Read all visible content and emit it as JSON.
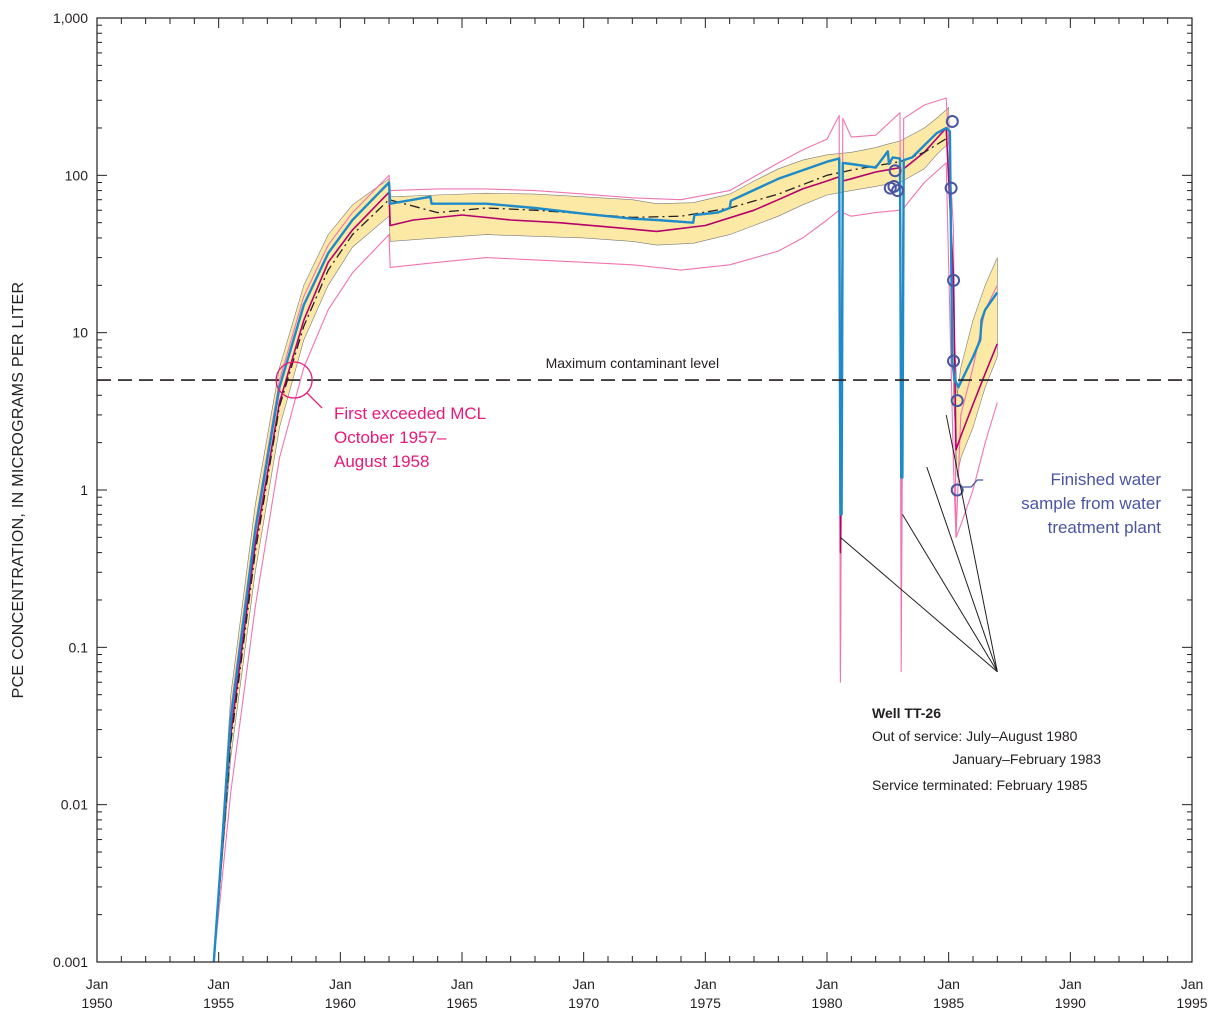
{
  "chart_data": {
    "type": "line",
    "yscale": "log",
    "ylim": [
      0.001,
      1000
    ],
    "xlim": [
      1950,
      1995
    ],
    "ylabel": "PCE  CONCENTRATION, IN MICROGRAMS PER LITER",
    "y_ticks": [
      {
        "value": 1000,
        "label": "1,000"
      },
      {
        "value": 100,
        "label": "100"
      },
      {
        "value": 10,
        "label": "10"
      },
      {
        "value": 1,
        "label": "1"
      },
      {
        "value": 0.1,
        "label": "0.1"
      },
      {
        "value": 0.01,
        "label": "0.01"
      },
      {
        "value": 0.001,
        "label": "0.001"
      }
    ],
    "x_ticks": [
      {
        "value": 1950,
        "month": "Jan",
        "year": "1950"
      },
      {
        "value": 1955,
        "month": "Jan",
        "year": "1955"
      },
      {
        "value": 1960,
        "month": "Jan",
        "year": "1960"
      },
      {
        "value": 1965,
        "month": "Jan",
        "year": "1965"
      },
      {
        "value": 1970,
        "month": "Jan",
        "year": "1970"
      },
      {
        "value": 1975,
        "month": "Jan",
        "year": "1975"
      },
      {
        "value": 1980,
        "month": "Jan",
        "year": "1980"
      },
      {
        "value": 1985,
        "month": "Jan",
        "year": "1985"
      },
      {
        "value": 1990,
        "month": "Jan",
        "year": "1990"
      },
      {
        "value": 1995,
        "month": "Jan",
        "year": "1995"
      }
    ],
    "mcl": {
      "value": 5,
      "label": "Maximum contaminant level"
    },
    "colors": {
      "band": "#fde9a6",
      "band_edge": "#7a7a7a",
      "blue": "#1f8ac8",
      "magenta": "#b5006b",
      "pink": "#f074b0",
      "dashdot": "#231f20",
      "annotation_pink": "#e8197a",
      "annotation_blue": "#4a55a2",
      "axis": "#231f20"
    },
    "series": [
      {
        "style": "band",
        "x": [
          1954.8,
          1955.5,
          1956.5,
          1957.5,
          1958.5,
          1959.5,
          1960.5,
          1962.0,
          1962.05,
          1964.0,
          1966.0,
          1968.0,
          1970.0,
          1972.0,
          1973.0,
          1974.5,
          1976.0,
          1977.0,
          1978.0,
          1979.0,
          1980.0,
          1981.0,
          1982.0,
          1982.5,
          1983.0,
          1984.0,
          1984.5,
          1985.0,
          1985.2,
          1985.35,
          1985.5,
          1986.0,
          1986.5,
          1987.0
        ],
        "lower": [
          0.001,
          0.02,
          0.3,
          2.5,
          9,
          20,
          35,
          55,
          38,
          40,
          42,
          41,
          40,
          38,
          36,
          37,
          42,
          48,
          55,
          65,
          75,
          80,
          85,
          88,
          90,
          110,
          135,
          160,
          4,
          1.2,
          1.6,
          2.5,
          4.5,
          7
        ],
        "upper": [
          0.001,
          0.05,
          0.8,
          6,
          20,
          42,
          65,
          95,
          73,
          75,
          77,
          76,
          73,
          70,
          66,
          67,
          76,
          92,
          110,
          125,
          135,
          140,
          150,
          158,
          165,
          200,
          230,
          270,
          13,
          4,
          6,
          12,
          20,
          30
        ]
      },
      {
        "style": "blue",
        "x": [
          1954.8,
          1955.5,
          1956.5,
          1957.5,
          1958.5,
          1959.5,
          1960.5,
          1962.0,
          1962.05,
          1963.0,
          1963.7,
          1963.75,
          1966.0,
          1968.0,
          1970.0,
          1972.0,
          1973.0,
          1974.5,
          1974.55,
          1975.5,
          1976.0,
          1976.05,
          1978.0,
          1980.0,
          1980.5,
          1980.55,
          1980.6,
          1980.65,
          1981.0,
          1982.0,
          1982.5,
          1982.55,
          1982.7,
          1983.0,
          1983.05,
          1983.1,
          1983.15,
          1983.5,
          1984.0,
          1984.5,
          1984.9,
          1985.05,
          1985.15,
          1985.25,
          1985.4,
          1986.0,
          1986.3,
          1986.35,
          1986.5,
          1987.0
        ],
        "y": [
          0.001,
          0.035,
          0.55,
          4.5,
          15,
          32,
          52,
          90,
          66,
          70,
          73,
          66,
          66,
          62,
          57,
          53,
          52,
          50,
          56,
          58,
          62,
          69,
          95,
          122,
          128,
          0.7,
          0.7,
          120,
          118,
          112,
          142,
          118,
          130,
          128,
          1.2,
          1.2,
          125,
          130,
          155,
          185,
          200,
          190,
          6.5,
          5,
          4.5,
          7,
          9,
          12,
          14,
          18
        ]
      },
      {
        "style": "magenta",
        "x": [
          1954.8,
          1955.5,
          1956.5,
          1957.5,
          1958.5,
          1959.5,
          1960.5,
          1962.0,
          1962.05,
          1963.0,
          1965.0,
          1967.0,
          1969.0,
          1971.0,
          1973.0,
          1975.0,
          1977.0,
          1978.0,
          1979.0,
          1980.0,
          1980.5,
          1980.55,
          1980.65,
          1981.0,
          1982.0,
          1983.0,
          1983.05,
          1983.15,
          1984.0,
          1984.9,
          1985.2,
          1985.3,
          1985.5,
          1986.0,
          1986.5,
          1987.0
        ],
        "y": [
          0.001,
          0.028,
          0.45,
          3.6,
          12,
          28,
          45,
          78,
          48,
          52,
          56,
          52,
          50,
          47,
          44,
          48,
          60,
          70,
          82,
          92,
          98,
          0.4,
          92,
          95,
          105,
          112,
          1.2,
          110,
          140,
          200,
          22,
          1.8,
          2.2,
          3.5,
          5.5,
          8.5
        ]
      },
      {
        "style": "pink",
        "x": [
          1954.8,
          1955.5,
          1956.5,
          1957.5,
          1958.5,
          1959.5,
          1960.5,
          1962.0,
          1962.05,
          1964.0,
          1966.0,
          1968.0,
          1970.0,
          1972.0,
          1974.0,
          1976.0,
          1978.0,
          1979.0,
          1980.0,
          1980.5,
          1980.55,
          1980.65,
          1981.0,
          1982.0,
          1983.0,
          1983.05,
          1983.15,
          1984.0,
          1984.9,
          1985.2,
          1985.3,
          1985.5,
          1986.0,
          1986.5,
          1987.0
        ],
        "y": [
          0.001,
          0.04,
          0.6,
          5,
          17,
          36,
          58,
          100,
          80,
          82,
          82,
          80,
          76,
          72,
          70,
          80,
          120,
          145,
          170,
          240,
          0.07,
          230,
          175,
          180,
          250,
          0.2,
          230,
          280,
          310,
          45,
          0.5,
          3,
          6,
          14,
          20
        ]
      },
      {
        "style": "pink",
        "x": [
          1954.8,
          1955.5,
          1956.5,
          1957.5,
          1958.5,
          1959.5,
          1960.5,
          1962.0,
          1962.05,
          1964.0,
          1966.0,
          1968.0,
          1970.0,
          1972.0,
          1974.0,
          1976.0,
          1978.0,
          1979.0,
          1980.0,
          1980.5,
          1980.55,
          1980.65,
          1981.0,
          1982.0,
          1983.0,
          1983.05,
          1983.15,
          1984.0,
          1984.9,
          1985.2,
          1985.3,
          1985.5,
          1986.0,
          1986.5,
          1987.0
        ],
        "y": [
          0.001,
          0.012,
          0.18,
          1.6,
          6,
          14,
          24,
          42,
          26,
          28,
          30,
          29,
          28,
          27,
          25,
          27,
          33,
          40,
          52,
          60,
          0.06,
          58,
          55,
          58,
          60,
          0.07,
          62,
          90,
          120,
          1.4,
          0.5,
          0.6,
          1.0,
          2.0,
          3.6
        ]
      },
      {
        "style": "dashdot",
        "x": [
          1954.8,
          1955.5,
          1956.5,
          1957.5,
          1958.5,
          1959.5,
          1960.5,
          1962.0,
          1964.0,
          1966.0,
          1968.0,
          1970.0,
          1972.0,
          1974.0,
          1976.0,
          1978.0,
          1980.0,
          1981.0,
          1982.0,
          1983.0,
          1984.0,
          1985.0
        ],
        "y": [
          0.001,
          0.025,
          0.4,
          3.4,
          11,
          25,
          42,
          70,
          58,
          62,
          60,
          57,
          54,
          55,
          62,
          76,
          100,
          108,
          115,
          122,
          140,
          175
        ]
      }
    ],
    "samples": [
      {
        "x": 1982.6,
        "y": 83
      },
      {
        "x": 1982.75,
        "y": 85
      },
      {
        "x": 1982.9,
        "y": 80
      },
      {
        "x": 1982.8,
        "y": 107
      },
      {
        "x": 1985.15,
        "y": 220
      },
      {
        "x": 1985.1,
        "y": 83
      },
      {
        "x": 1985.2,
        "y": 21.5
      },
      {
        "x": 1985.2,
        "y": 6.6
      },
      {
        "x": 1985.35,
        "y": 3.7
      },
      {
        "x": 1985.35,
        "y": 1.0
      }
    ],
    "annotations": {
      "mcl_exceed": {
        "lines": [
          "First exceeded MCL",
          "October 1957–",
          "August 1958"
        ],
        "point": {
          "x": 1958.1,
          "y": 5
        }
      },
      "finished_water": {
        "lines": [
          "Finished water",
          "sample from water",
          "treatment plant"
        ],
        "point": {
          "x": 1985.35,
          "y": 1.0
        }
      },
      "well": {
        "title": "Well TT-26",
        "lines": [
          "Out of service: July–August 1980",
          "January–February 1983",
          "Service terminated: February 1985"
        ],
        "targets": [
          {
            "x": 1980.55,
            "y": 0.5
          },
          {
            "x": 1983.1,
            "y": 0.7
          },
          {
            "x": 1984.1,
            "y": 1.4
          },
          {
            "x": 1984.9,
            "y": 3
          }
        ],
        "apex": {
          "x": 1987.0,
          "y": 0.07
        }
      }
    }
  }
}
